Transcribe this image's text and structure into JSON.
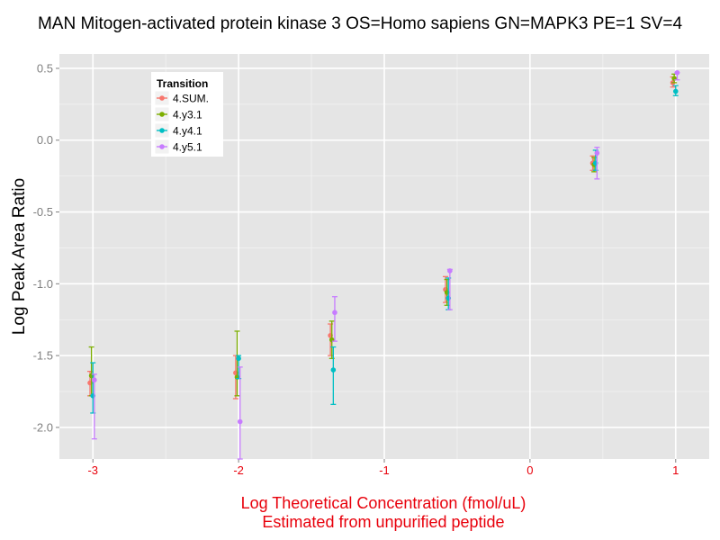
{
  "chart_data": {
    "type": "scatter",
    "title": "MAN Mitogen-activated protein kinase 3 OS=Homo sapiens GN=MAPK3 PE=1 SV=4",
    "ylabel": "Log Peak Area Ratio",
    "xlabel_line1": "Log Theoretical Concentration (fmol/uL)",
    "xlabel_line2": "Estimated from unpurified peptide",
    "xlim": [
      -3.23,
      1.23
    ],
    "ylim": [
      -2.22,
      0.6
    ],
    "x_ticks": [
      -3,
      -2,
      -1,
      0,
      1
    ],
    "x_tick_labels": [
      "-3",
      "-2",
      "-1",
      "0",
      "1"
    ],
    "y_ticks": [
      0.5,
      0.0,
      -0.5,
      -1.0,
      -1.5,
      -2.0
    ],
    "y_tick_labels": [
      "0.5",
      "0.0",
      "-0.5",
      "-1.0",
      "-1.5",
      "-2.0"
    ],
    "grid": true,
    "legend": {
      "title": "Transition",
      "position": "top-left"
    },
    "series": [
      {
        "name": "4.SUM.",
        "color": "#f8766d",
        "points": [
          {
            "x": -3.02,
            "y": -1.69,
            "lo": -1.78,
            "hi": -1.61
          },
          {
            "x": -2.02,
            "y": -1.62,
            "lo": -1.8,
            "hi": -1.5
          },
          {
            "x": -1.37,
            "y": -1.36,
            "lo": -1.5,
            "hi": -1.28
          },
          {
            "x": -0.58,
            "y": -1.04,
            "lo": -1.13,
            "hi": -0.95
          },
          {
            "x": 0.43,
            "y": -0.16,
            "lo": -0.21,
            "hi": -0.11
          },
          {
            "x": 0.98,
            "y": 0.4,
            "lo": 0.37,
            "hi": 0.44
          }
        ]
      },
      {
        "name": "4.y3.1",
        "color": "#7cae00",
        "points": [
          {
            "x": -3.01,
            "y": -1.64,
            "lo": -1.78,
            "hi": -1.44
          },
          {
            "x": -2.01,
            "y": -1.65,
            "lo": -1.78,
            "hi": -1.33
          },
          {
            "x": -1.36,
            "y": -1.39,
            "lo": -1.52,
            "hi": -1.26
          },
          {
            "x": -0.57,
            "y": -1.06,
            "lo": -1.15,
            "hi": -0.97
          },
          {
            "x": 0.44,
            "y": -0.17,
            "lo": -0.22,
            "hi": -0.12
          },
          {
            "x": 0.99,
            "y": 0.43,
            "lo": 0.4,
            "hi": 0.46
          }
        ]
      },
      {
        "name": "4.y4.1",
        "color": "#00bfc4",
        "points": [
          {
            "x": -3.0,
            "y": -1.78,
            "lo": -1.9,
            "hi": -1.55
          },
          {
            "x": -2.0,
            "y": -1.52,
            "lo": -1.66,
            "hi": -1.5
          },
          {
            "x": -1.35,
            "y": -1.6,
            "lo": -1.84,
            "hi": -1.44
          },
          {
            "x": -0.56,
            "y": -1.1,
            "lo": -1.18,
            "hi": -0.96
          },
          {
            "x": 0.45,
            "y": -0.16,
            "lo": -0.21,
            "hi": -0.07
          },
          {
            "x": 1.0,
            "y": 0.34,
            "lo": 0.31,
            "hi": 0.38
          }
        ]
      },
      {
        "name": "4.y5.1",
        "color": "#c77cff",
        "points": [
          {
            "x": -2.99,
            "y": -1.67,
            "lo": -2.08,
            "hi": -1.63
          },
          {
            "x": -1.99,
            "y": -1.96,
            "lo": -2.22,
            "hi": -1.58
          },
          {
            "x": -1.34,
            "y": -1.2,
            "lo": -1.4,
            "hi": -1.09
          },
          {
            "x": -0.55,
            "y": -0.91,
            "lo": -1.18,
            "hi": -0.9
          },
          {
            "x": 0.46,
            "y": -0.09,
            "lo": -0.27,
            "hi": -0.05
          },
          {
            "x": 1.01,
            "y": 0.47,
            "lo": 0.42,
            "hi": 0.47
          }
        ]
      }
    ]
  }
}
